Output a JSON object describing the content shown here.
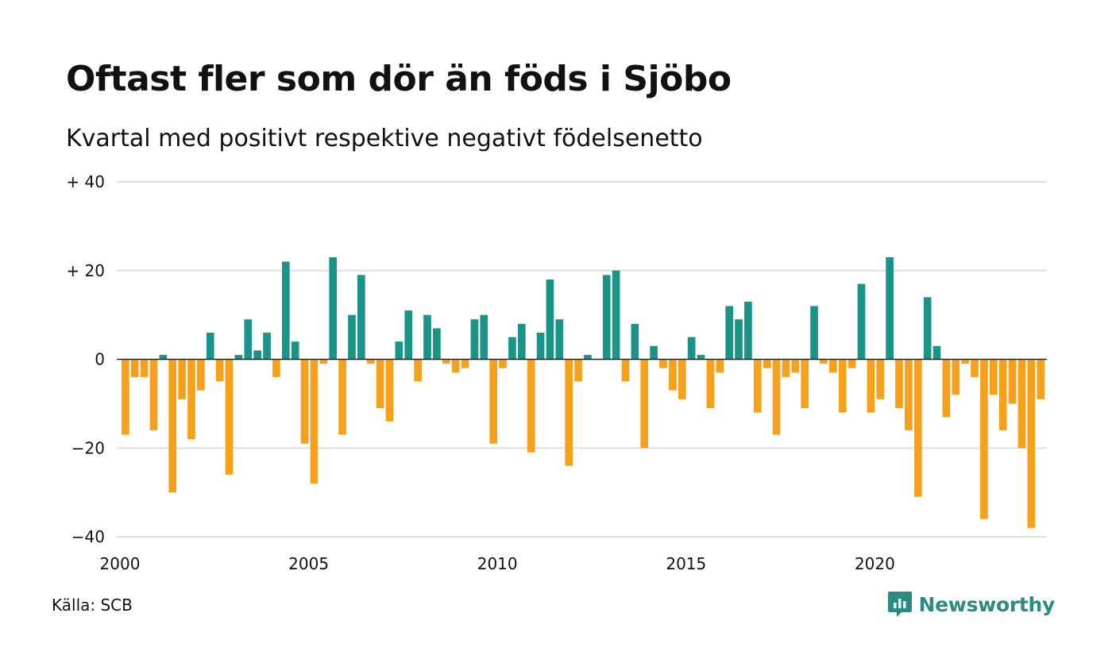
{
  "title": "Oftast fler som dör än föds i Sjöbo",
  "subtitle": "Kvartal med positivt respektive negativt födelsenetto",
  "source": "Källa: SCB",
  "brand": "Newsworthy",
  "colors": {
    "positive": "#1a9486",
    "negative": "#f7a01c",
    "grid": "#dddddd",
    "zero": "#222222",
    "brand": "#2a8c80"
  },
  "chart_data": {
    "type": "bar",
    "start_year": 2000,
    "interval": "quarter",
    "ylim": [
      -40,
      40
    ],
    "yticks": [
      40,
      20,
      0,
      -20,
      -40
    ],
    "ytick_labels": [
      "+ 40",
      "+ 20",
      "0",
      "−20",
      "−40"
    ],
    "xticks": [
      2000,
      2005,
      2010,
      2015,
      2020
    ],
    "xtick_labels": [
      "2000",
      "2005",
      "2010",
      "2015",
      "2020"
    ],
    "grid": true,
    "values": [
      -17,
      -4,
      -4,
      -16,
      1,
      -30,
      -9,
      -18,
      -7,
      6,
      -5,
      -26,
      1,
      9,
      2,
      6,
      -4,
      22,
      4,
      -19,
      -28,
      -1,
      23,
      -17,
      10,
      19,
      -1,
      -11,
      -14,
      4,
      11,
      -5,
      10,
      7,
      -1,
      -3,
      -2,
      9,
      10,
      -19,
      -2,
      5,
      8,
      -21,
      6,
      18,
      9,
      -24,
      -5,
      1,
      0,
      19,
      20,
      -5,
      8,
      -20,
      3,
      -2,
      -7,
      -9,
      5,
      1,
      -11,
      -3,
      12,
      9,
      13,
      -12,
      -2,
      -17,
      -4,
      -3,
      -11,
      12,
      -1,
      -3,
      -12,
      -2,
      17,
      -12,
      -9,
      23,
      -11,
      -16,
      -31,
      14,
      3,
      -13,
      -8,
      -1,
      -4,
      -36,
      -8,
      -16,
      -10,
      -20,
      -38,
      -9
    ]
  }
}
